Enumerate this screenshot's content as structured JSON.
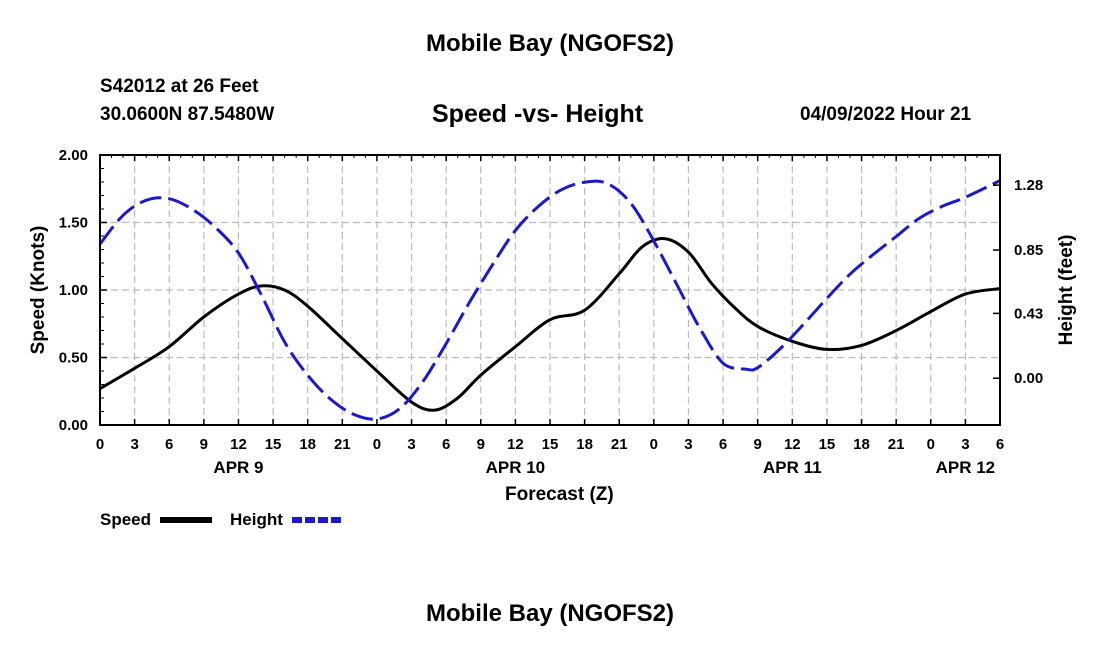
{
  "header": {
    "title": "Mobile Bay (NGOFS2)",
    "station": "S42012 at 26 Feet",
    "coordinates": "30.0600N  87.5480W",
    "subtitle": "Speed -vs- Height",
    "datetime": "04/09/2022 Hour 21"
  },
  "footer": {
    "title": "Mobile Bay (NGOFS2)"
  },
  "chart_data": {
    "type": "line",
    "title": "Speed -vs- Height",
    "xlabel": "Forecast (Z)",
    "ylabel": "Speed (Knots)",
    "y2label": "Height (feet)",
    "x_range_hours": [
      0,
      78
    ],
    "x_tick_labels": [
      "0",
      "3",
      "6",
      "9",
      "12",
      "15",
      "18",
      "21",
      "0",
      "3",
      "6",
      "9",
      "12",
      "15",
      "18",
      "21",
      "0",
      "3",
      "6",
      "9",
      "12",
      "15",
      "18",
      "21",
      "0",
      "3",
      "6"
    ],
    "day_labels": [
      "APR 9",
      "APR 10",
      "APR 11",
      "APR 12"
    ],
    "ylim": [
      0,
      2.0
    ],
    "y_ticks": [
      "0.00",
      "0.50",
      "1.00",
      "1.50",
      "2.00"
    ],
    "y2_ticks": [
      "0.00",
      "0.43",
      "0.85",
      "1.28"
    ],
    "y2_range": [
      -0.31,
      1.48
    ],
    "grid": true,
    "legend": {
      "placement": "bottom-left",
      "entries": [
        "Speed",
        "Height"
      ]
    },
    "colors": {
      "speed": "#000000",
      "height": "#1a1acc",
      "grid": "#bbbbbb"
    },
    "series": [
      {
        "name": "Speed",
        "axis": "left",
        "x": [
          0,
          3,
          6,
          9,
          12,
          14,
          16,
          18,
          21,
          24,
          27,
          29,
          31,
          33,
          36,
          39,
          42,
          45,
          47,
          49,
          51,
          53,
          55,
          57,
          60,
          63,
          66,
          69,
          72,
          75,
          78
        ],
        "values": [
          0.27,
          0.42,
          0.58,
          0.8,
          0.97,
          1.03,
          1.0,
          0.88,
          0.64,
          0.4,
          0.17,
          0.11,
          0.2,
          0.37,
          0.58,
          0.78,
          0.85,
          1.12,
          1.32,
          1.38,
          1.28,
          1.05,
          0.87,
          0.73,
          0.62,
          0.56,
          0.59,
          0.7,
          0.84,
          0.97,
          1.01
        ]
      },
      {
        "name": "Height",
        "axis": "right",
        "x": [
          0,
          2,
          4,
          6,
          8,
          10,
          12,
          14,
          16,
          18,
          20,
          22,
          24,
          26,
          28,
          30,
          32,
          34,
          36,
          38,
          40,
          42,
          44,
          46,
          48,
          50,
          52,
          54,
          56,
          57,
          59,
          61,
          63,
          65,
          67,
          69,
          71,
          73,
          75,
          78
        ],
        "values": [
          0.89,
          1.08,
          1.18,
          1.19,
          1.12,
          1.0,
          0.83,
          0.55,
          0.24,
          0.02,
          -0.14,
          -0.24,
          -0.27,
          -0.2,
          -0.02,
          0.23,
          0.5,
          0.75,
          0.98,
          1.14,
          1.25,
          1.3,
          1.29,
          1.16,
          0.91,
          0.62,
          0.33,
          0.1,
          0.06,
          0.07,
          0.2,
          0.36,
          0.53,
          0.69,
          0.82,
          0.94,
          1.06,
          1.14,
          1.2,
          1.31
        ]
      }
    ]
  }
}
